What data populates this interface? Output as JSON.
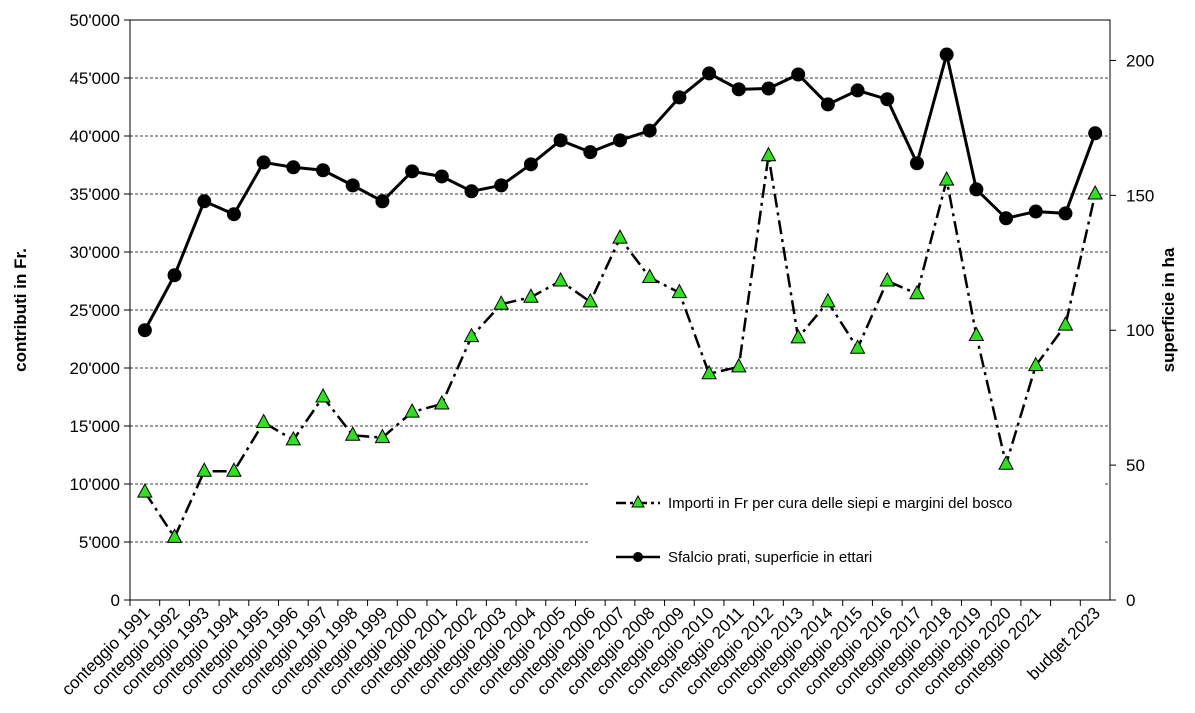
{
  "chart_data": {
    "type": "line",
    "categories": [
      "conteggio 1991",
      "conteggio 1992",
      "conteggio 1993",
      "conteggio 1994",
      "conteggio 1995",
      "conteggio 1996",
      "conteggio 1997",
      "conteggio 1998",
      "conteggio 1999",
      "conteggio 2000",
      "conteggio 2001",
      "conteggio 2002",
      "conteggio 2003",
      "conteggio 2004",
      "conteggio 2005",
      "conteggio 2006",
      "conteggio 2007",
      "conteggio 2008",
      "conteggio 2009",
      "conteggio 2010",
      "conteggio 2011",
      "conteggio 2012",
      "conteggio 2013",
      "conteggio 2014",
      "conteggio 2015",
      "conteggio 2016",
      "conteggio 2017",
      "conteggio 2018",
      "conteggio 2019",
      "conteggio 2020",
      "conteggio 2021",
      null,
      "budget 2023"
    ],
    "y_label": "contributi in Fr.",
    "y2_label": "superficie in ha",
    "ylim": [
      0,
      50000
    ],
    "yticks": [
      {
        "value": 0,
        "label": "0"
      },
      {
        "value": 5000,
        "label": "5'000"
      },
      {
        "value": 10000,
        "label": "10'000"
      },
      {
        "value": 15000,
        "label": "15'000"
      },
      {
        "value": 20000,
        "label": "20'000"
      },
      {
        "value": 25000,
        "label": "25'000"
      },
      {
        "value": 30000,
        "label": "30'000"
      },
      {
        "value": 35000,
        "label": "35'000"
      },
      {
        "value": 40000,
        "label": "40'000"
      },
      {
        "value": 45000,
        "label": "45'000"
      },
      {
        "value": 50000,
        "label": "50'000"
      }
    ],
    "y2lim": [
      0,
      215
    ],
    "y2ticks": [
      0,
      50,
      100,
      150,
      200
    ],
    "grid": true,
    "series": [
      {
        "name": "Importi in Fr  per cura delle siepi e margini del bosco",
        "color": "#33dd22",
        "marker": "triangle",
        "values": [
          9300,
          5400,
          11100,
          11100,
          15300,
          13800,
          17500,
          14200,
          14000,
          16200,
          16900,
          22700,
          25500,
          26100,
          27500,
          25700,
          31200,
          27800,
          26500,
          19500,
          20100,
          38300,
          22600,
          25700,
          21700,
          27500,
          26400,
          36200,
          22800,
          11700,
          20200,
          23700,
          35000
        ]
      },
      {
        "name": "Sfalcio prati, superficie in ettari",
        "color": "#000000",
        "marker": "circle",
        "axis": "y2",
        "values": [
          100,
          120.4,
          147.8,
          143,
          162.2,
          160.4,
          159.3,
          153.7,
          147.8,
          158.9,
          157,
          151.5,
          153.7,
          161.5,
          170.4,
          166,
          170.4,
          174,
          186.3,
          195.2,
          189.3,
          189.6,
          194.8,
          183.7,
          188.9,
          185.6,
          161.9,
          202.2,
          152.2,
          141.5,
          144,
          143.3,
          173
        ]
      }
    ]
  }
}
